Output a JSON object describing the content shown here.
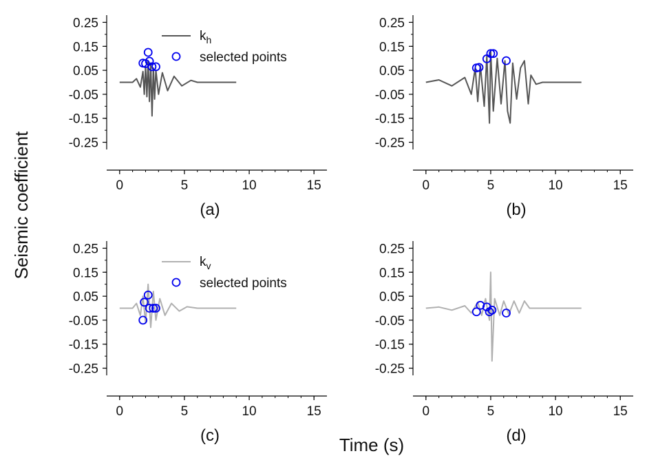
{
  "figure": {
    "ylabel": "Seismic coefficient",
    "xlabel": "Time (s)"
  },
  "chart_data": [
    {
      "id": "a",
      "type": "line",
      "panel_label": "(a)",
      "ylim": [
        -0.28,
        0.28
      ],
      "xlim": [
        -1,
        16
      ],
      "yticks": [
        "0.25",
        "0.15",
        "0.05",
        "-0.05",
        "-0.15",
        "-0.25"
      ],
      "xticks": [
        "0",
        "5",
        "10",
        "15"
      ],
      "legend": {
        "line_label": "k",
        "line_sub": "h",
        "points_label": "selected points",
        "position": "top-right"
      },
      "series": [
        {
          "name": "kh",
          "color": "#555555",
          "x": [
            0,
            1.0,
            1.3,
            1.6,
            1.8,
            1.9,
            2.0,
            2.1,
            2.2,
            2.3,
            2.4,
            2.5,
            2.6,
            2.7,
            2.8,
            3.0,
            3.3,
            3.7,
            4.2,
            4.8,
            5.5,
            6.0,
            9.0
          ],
          "y": [
            0.0,
            0.0,
            0.015,
            -0.02,
            0.045,
            -0.05,
            0.065,
            -0.06,
            0.09,
            -0.08,
            0.08,
            -0.14,
            0.06,
            -0.07,
            0.05,
            -0.05,
            0.04,
            -0.035,
            0.025,
            -0.015,
            0.008,
            0.0,
            0.0
          ]
        }
      ],
      "selected_points": {
        "x": [
          1.8,
          2.0,
          2.2,
          2.3,
          2.5,
          2.8
        ],
        "y": [
          0.08,
          0.078,
          0.125,
          0.088,
          0.065,
          0.065
        ],
        "color": "#0000ee"
      }
    },
    {
      "id": "b",
      "type": "line",
      "panel_label": "(b)",
      "ylim": [
        -0.28,
        0.28
      ],
      "xlim": [
        -1,
        16
      ],
      "yticks": [
        "0.25",
        "0.15",
        "0.05",
        "-0.05",
        "-0.15",
        "-0.25"
      ],
      "xticks": [
        "0",
        "5",
        "10",
        "15"
      ],
      "series": [
        {
          "name": "kh",
          "color": "#555555",
          "x": [
            0,
            1.0,
            2.0,
            3.0,
            3.5,
            3.8,
            4.0,
            4.2,
            4.5,
            4.7,
            4.9,
            5.0,
            5.2,
            5.5,
            5.8,
            6.1,
            6.3,
            6.5,
            6.7,
            7.0,
            7.3,
            7.6,
            7.9,
            8.1,
            8.5,
            9.0,
            12.0
          ],
          "y": [
            0.0,
            0.01,
            -0.015,
            0.02,
            -0.05,
            0.06,
            -0.08,
            0.07,
            -0.1,
            0.11,
            -0.17,
            0.13,
            -0.12,
            0.1,
            -0.09,
            0.09,
            -0.12,
            -0.17,
            0.08,
            -0.07,
            0.06,
            0.09,
            -0.09,
            0.03,
            -0.008,
            0.0,
            0.0
          ]
        }
      ],
      "selected_points": {
        "x": [
          3.9,
          4.1,
          4.7,
          5.0,
          5.2,
          6.2
        ],
        "y": [
          0.06,
          0.062,
          0.098,
          0.12,
          0.12,
          0.09
        ],
        "color": "#0000ee"
      }
    },
    {
      "id": "c",
      "type": "line",
      "panel_label": "(c)",
      "ylim": [
        -0.28,
        0.28
      ],
      "xlim": [
        -1,
        16
      ],
      "yticks": [
        "0.25",
        "0.15",
        "0.05",
        "-0.05",
        "-0.15",
        "-0.25"
      ],
      "xticks": [
        "0",
        "5",
        "10",
        "15"
      ],
      "legend": {
        "line_label": "k",
        "line_sub": "v",
        "points_label": "selected points",
        "position": "top-right"
      },
      "series": [
        {
          "name": "kv",
          "color": "#b0b0b0",
          "x": [
            0,
            1.0,
            1.3,
            1.6,
            1.8,
            2.0,
            2.2,
            2.4,
            2.6,
            2.8,
            3.1,
            3.5,
            4.0,
            4.6,
            5.2,
            6.0,
            9.0
          ],
          "y": [
            0.0,
            0.0,
            0.02,
            -0.03,
            0.05,
            -0.06,
            0.1,
            -0.08,
            0.07,
            -0.05,
            0.04,
            -0.03,
            0.02,
            -0.012,
            0.006,
            0.0,
            0.0
          ]
        }
      ],
      "selected_points": {
        "x": [
          1.8,
          1.9,
          2.2,
          2.3,
          2.6,
          2.8
        ],
        "y": [
          -0.05,
          0.025,
          0.055,
          0.0,
          0.0,
          0.0
        ],
        "color": "#0000ee"
      }
    },
    {
      "id": "d",
      "type": "line",
      "panel_label": "(d)",
      "ylim": [
        -0.28,
        0.28
      ],
      "xlim": [
        -1,
        16
      ],
      "yticks": [
        "0.25",
        "0.15",
        "0.05",
        "-0.05",
        "-0.15",
        "-0.25"
      ],
      "xticks": [
        "0",
        "5",
        "10",
        "15"
      ],
      "series": [
        {
          "name": "kv",
          "color": "#b0b0b0",
          "x": [
            0,
            1.0,
            2.0,
            3.0,
            3.5,
            4.0,
            4.3,
            4.6,
            4.9,
            5.0,
            5.1,
            5.3,
            5.7,
            6.0,
            6.4,
            6.8,
            7.2,
            7.6,
            8.0,
            12.0
          ],
          "y": [
            0.0,
            0.005,
            -0.008,
            0.01,
            -0.02,
            0.025,
            -0.03,
            0.04,
            -0.05,
            0.15,
            -0.22,
            0.04,
            -0.03,
            0.03,
            -0.025,
            0.03,
            -0.02,
            0.03,
            0.0,
            0.0
          ]
        }
      ],
      "selected_points": {
        "x": [
          3.9,
          4.2,
          4.7,
          4.9,
          5.1,
          6.2
        ],
        "y": [
          -0.015,
          0.012,
          0.005,
          -0.015,
          -0.008,
          -0.02
        ],
        "color": "#0000ee"
      }
    }
  ]
}
